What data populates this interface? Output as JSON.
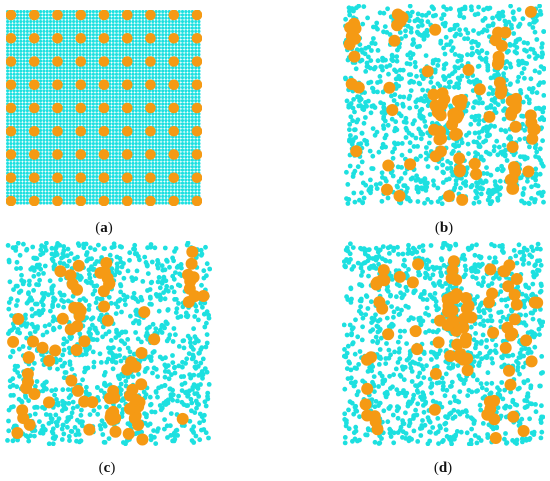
{
  "figure": {
    "panels": [
      {
        "id": "a",
        "label_open": "(",
        "letter": "a",
        "label_close": ")",
        "arrangement": "ordered-lattice"
      },
      {
        "id": "b",
        "label_open": "(",
        "letter": "b",
        "label_close": ")",
        "arrangement": "random-clustered"
      },
      {
        "id": "c",
        "label_open": "(",
        "letter": "c",
        "label_close": ")",
        "arrangement": "random-clustered"
      },
      {
        "id": "d",
        "label_open": "(",
        "letter": "d",
        "label_close": ")",
        "arrangement": "random-clustered"
      }
    ],
    "colors": {
      "small_particle": "#1de0e0",
      "large_particle": "#f59a14",
      "background": "#ffffff"
    }
  }
}
